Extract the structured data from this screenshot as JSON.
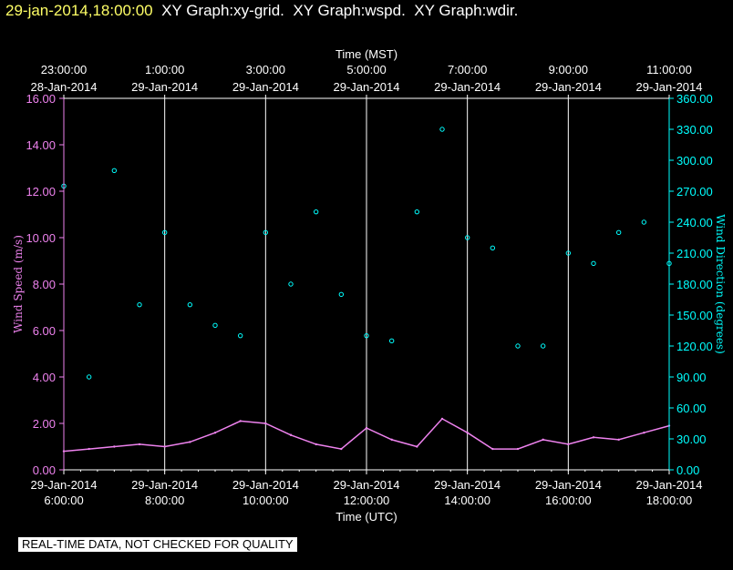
{
  "header": {
    "timestamp": "29-jan-2014,18:00:00",
    "graphs": [
      "XY Graph:xy-grid.",
      "XY Graph:wspd.",
      "XY Graph:wdir."
    ]
  },
  "footer": {
    "quality_note": "REAL-TIME DATA, NOT CHECKED FOR QUALITY"
  },
  "colors": {
    "wind_speed": "#ee82ee",
    "wind_direction": "#00ffff",
    "background": "#000000",
    "grid": "#ffffff",
    "timestamp": "#ffff66"
  },
  "chart_data": {
    "type": "line",
    "grid": true,
    "x_top": {
      "label": "Time (MST)",
      "ticks": [
        {
          "time": "23:00:00",
          "date": "28-Jan-2014"
        },
        {
          "time": "1:00:00",
          "date": "29-Jan-2014"
        },
        {
          "time": "3:00:00",
          "date": "29-Jan-2014"
        },
        {
          "time": "5:00:00",
          "date": "29-Jan-2014"
        },
        {
          "time": "7:00:00",
          "date": "29-Jan-2014"
        },
        {
          "time": "9:00:00",
          "date": "29-Jan-2014"
        },
        {
          "time": "11:00:00",
          "date": "29-Jan-2014"
        }
      ]
    },
    "x_bottom": {
      "label": "Time (UTC)",
      "ticks": [
        {
          "date": "29-Jan-2014",
          "time": "6:00:00"
        },
        {
          "date": "29-Jan-2014",
          "time": "8:00:00"
        },
        {
          "date": "29-Jan-2014",
          "time": "10:00:00"
        },
        {
          "date": "29-Jan-2014",
          "time": "12:00:00"
        },
        {
          "date": "29-Jan-2014",
          "time": "14:00:00"
        },
        {
          "date": "29-Jan-2014",
          "time": "16:00:00"
        },
        {
          "date": "29-Jan-2014",
          "time": "18:00:00"
        }
      ],
      "range_utc_hours": [
        6,
        18
      ]
    },
    "y_left": {
      "label": "Wind Speed (m/s)",
      "range": [
        0,
        16
      ],
      "ticks": [
        "0.00",
        "2.00",
        "4.00",
        "6.00",
        "8.00",
        "10.00",
        "12.00",
        "14.00",
        "16.00"
      ]
    },
    "y_right": {
      "label": "Wind Direction (degrees)",
      "range": [
        0,
        360
      ],
      "ticks": [
        "0.00",
        "30.00",
        "60.00",
        "90.00",
        "120.00",
        "150.00",
        "180.00",
        "210.00",
        "240.00",
        "270.00",
        "300.00",
        "330.00",
        "360.00"
      ]
    },
    "series": [
      {
        "name": "wspd",
        "axis": "left",
        "style": "line",
        "utc_hours": [
          6.0,
          6.5,
          7.0,
          7.5,
          8.0,
          8.5,
          9.0,
          9.5,
          10.0,
          10.5,
          11.0,
          11.5,
          12.0,
          12.5,
          13.0,
          13.5,
          14.0,
          14.5,
          15.0,
          15.5,
          16.0,
          16.5,
          17.0,
          17.5,
          18.0
        ],
        "values": [
          0.8,
          0.9,
          1.0,
          1.1,
          1.0,
          1.2,
          1.6,
          2.1,
          2.0,
          1.5,
          1.1,
          0.9,
          1.8,
          1.3,
          1.0,
          2.2,
          1.6,
          0.9,
          0.9,
          1.3,
          1.1,
          1.4,
          1.3,
          1.6,
          1.9
        ]
      },
      {
        "name": "wdir",
        "axis": "right",
        "style": "markers",
        "utc_hours": [
          6.0,
          6.5,
          7.0,
          7.5,
          8.0,
          8.5,
          9.0,
          9.5,
          10.0,
          10.5,
          11.0,
          11.5,
          12.0,
          12.5,
          13.0,
          13.5,
          14.0,
          14.5,
          15.0,
          15.5,
          16.0,
          16.5,
          17.0,
          17.5,
          18.0
        ],
        "values": [
          275,
          90,
          290,
          160,
          230,
          160,
          140,
          130,
          230,
          180,
          250,
          170,
          130,
          125,
          250,
          330,
          225,
          215,
          120,
          120,
          210,
          200,
          230,
          240,
          200
        ]
      }
    ]
  }
}
